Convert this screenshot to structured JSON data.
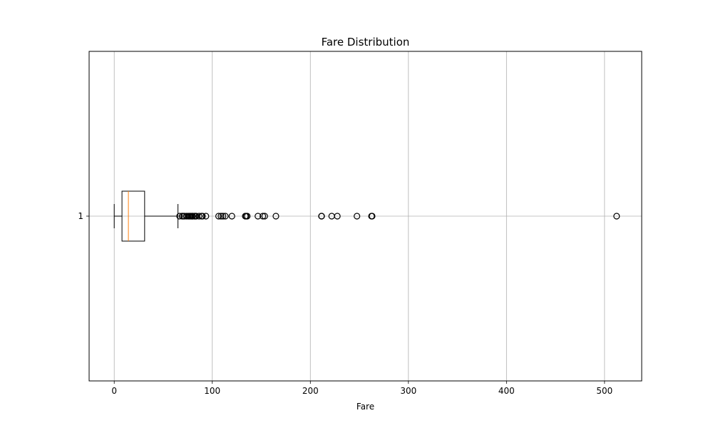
{
  "chart_data": {
    "type": "boxplot",
    "orientation": "horizontal",
    "title": "Fare Distribution",
    "xlabel": "Fare",
    "ylabel": "",
    "xlim": [
      -25.6,
      537.9
    ],
    "xticks": [
      0,
      100,
      200,
      300,
      400,
      500
    ],
    "ytick_labels": [
      "1"
    ],
    "grid": true,
    "box": {
      "category": "1",
      "whisker_low": 0.0,
      "q1": 7.91,
      "median": 14.45,
      "q3": 31.0,
      "whisker_high": 65.0,
      "outliers": [
        66.6,
        69.3,
        69.55,
        71.0,
        71.28,
        73.5,
        75.25,
        76.29,
        77.29,
        78.27,
        79.2,
        79.65,
        80.0,
        81.86,
        82.17,
        83.16,
        83.48,
        86.5,
        89.1,
        90.0,
        93.5,
        106.43,
        108.9,
        110.88,
        113.28,
        120.0,
        133.65,
        134.5,
        135.63,
        146.52,
        151.55,
        153.46,
        164.87,
        211.34,
        211.5,
        221.78,
        227.52,
        247.52,
        262.38,
        263.0,
        512.33
      ]
    },
    "colors": {
      "box": "#000000",
      "median": "#ff7f0e",
      "grid": "#b0b0b0",
      "outlier": "#000000"
    }
  }
}
